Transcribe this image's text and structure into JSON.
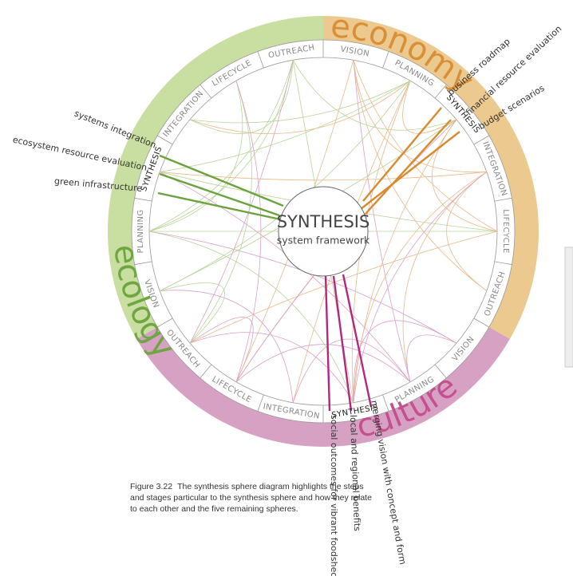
{
  "center": {
    "title": "SYNTHESIS",
    "subtitle": "system framework"
  },
  "spheres": [
    {
      "name": "economy",
      "stages": [
        "VISION",
        "PLANNING",
        "SYNTHESIS",
        "INTEGRATION",
        "LIFECYCLE",
        "OUTREACH"
      ],
      "callouts": [
        "business roadmap",
        "financial resource evaluation",
        "budget scenarios"
      ]
    },
    {
      "name": "culture",
      "stages": [
        "VISION",
        "PLANNING",
        "SYNTHESIS",
        "INTEGRATION",
        "LIFECYCLE",
        "OUTREACH"
      ],
      "callouts": [
        "social outcomes for vibrant foodshed",
        "local and regional benefits",
        "merging vision with concept and form"
      ]
    },
    {
      "name": "ecology",
      "stages": [
        "VISION",
        "PLANNING",
        "SYNTHESIS",
        "INTEGRATION",
        "LIFECYCLE",
        "OUTREACH"
      ],
      "callouts": [
        "systems integration",
        "ecosystem resource evaluation",
        "green infrastructure"
      ]
    }
  ],
  "caption": {
    "label": "Figure 3.22",
    "text": "The synthesis sphere diagram highlights the steps and stages particular to the synthesis sphere and how they relate to each other and the five remaining spheres."
  }
}
